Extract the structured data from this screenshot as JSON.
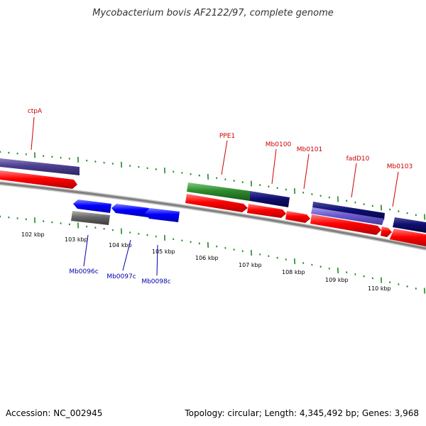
{
  "title": "Mycobacterium bovis AF2122/97, complete genome",
  "footer": {
    "accession": "Accession: NC_002945",
    "summary": "Topology: circular; Length: 4,345,492 bp; Genes: 3,968"
  },
  "colors": {
    "forward_cds": "#ff0000",
    "reverse_cds": "#0000ff",
    "backbone": "#888888",
    "tick": "#228822",
    "top_label": "#cc0000",
    "bottom_label": "#0000aa",
    "cog_green": "#2e8b2e",
    "cog_navy": "#101070",
    "cog_purple": "#6a5acd",
    "cog_grey": "#666666"
  },
  "axis": {
    "tick_labels": [
      "102 kbp",
      "103 kbp",
      "104 kbp",
      "105 kbp",
      "106 kbp",
      "107 kbp",
      "108 kbp",
      "109 kbp",
      "110 kbp"
    ]
  },
  "labels": {
    "top": [
      "ctpA",
      "PPE1",
      "Mb0100",
      "Mb0101",
      "fadD10",
      "Mb0103"
    ],
    "bottom": [
      "Mb0096c",
      "Mb0097c",
      "Mb0098c"
    ]
  }
}
